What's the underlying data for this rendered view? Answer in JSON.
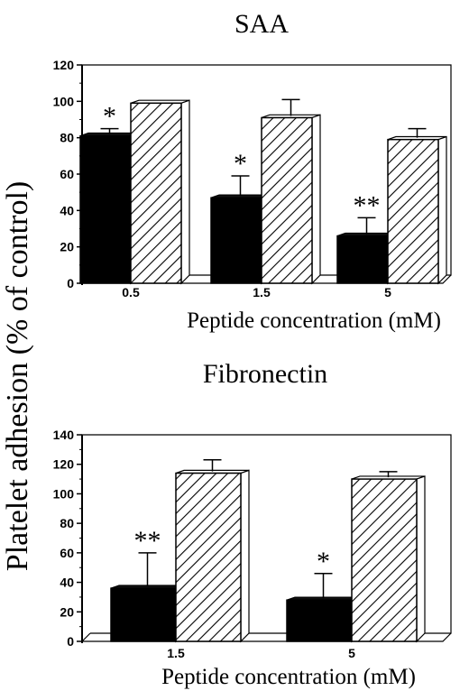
{
  "figure": {
    "y_axis_label": "Platelet adhesion (% of control)"
  },
  "chart_data": [
    {
      "type": "bar",
      "title": "SAA",
      "xlabel": "Peptide concentration (mM)",
      "ylabel": "Platelet adhesion (% of control)",
      "categories": [
        "0.5",
        "1.5",
        "5"
      ],
      "ylim": [
        0,
        120
      ],
      "yticks": [
        0,
        20,
        40,
        60,
        80,
        100,
        120
      ],
      "grid": false,
      "legend": "none",
      "series": [
        {
          "fill": "solid-black",
          "values": [
            81,
            47,
            26
          ],
          "errors": [
            4,
            12,
            10
          ]
        },
        {
          "fill": "diagonal-hatch",
          "values": [
            99,
            91,
            79
          ],
          "errors": [
            0,
            10,
            6
          ]
        }
      ],
      "annotations": [
        {
          "category": "0.5",
          "series": 0,
          "text": "*"
        },
        {
          "category": "1.5",
          "series": 0,
          "text": "*"
        },
        {
          "category": "5",
          "series": 0,
          "text": "**"
        }
      ]
    },
    {
      "type": "bar",
      "title": "Fibronectin",
      "xlabel": "Peptide concentration (mM)",
      "ylabel": "Platelet adhesion (% of control)",
      "categories": [
        "1.5",
        "5"
      ],
      "ylim": [
        0,
        140
      ],
      "yticks": [
        0,
        20,
        40,
        60,
        80,
        100,
        120,
        140
      ],
      "grid": false,
      "legend": "none",
      "series": [
        {
          "fill": "solid-black",
          "values": [
            36,
            28
          ],
          "errors": [
            24,
            18
          ]
        },
        {
          "fill": "diagonal-hatch",
          "values": [
            114,
            110
          ],
          "errors": [
            9,
            5
          ]
        }
      ],
      "annotations": [
        {
          "category": "1.5",
          "series": 0,
          "text": "**"
        },
        {
          "category": "5",
          "series": 0,
          "text": "*"
        }
      ]
    }
  ]
}
